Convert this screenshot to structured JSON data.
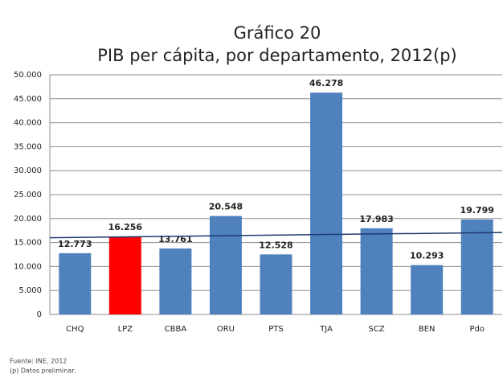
{
  "chart_data": {
    "type": "bar",
    "title": "Gráfico 20",
    "subtitle": "PIB per cápita, por departamento, 2012(p)",
    "categories": [
      "CHQ",
      "LPZ",
      "CBBA",
      "ORU",
      "PTS",
      "TJA",
      "SCZ",
      "BEN",
      "Pdo"
    ],
    "values": [
      12773,
      16256,
      13761,
      20548,
      12528,
      46278,
      17983,
      10293,
      19799
    ],
    "value_labels": [
      "12.773",
      "16.256",
      "13.761",
      "20.548",
      "12.528",
      "46.278",
      "17.983",
      "10.293",
      "19.799"
    ],
    "colors": [
      "#4f81bd",
      "#ff0000",
      "#4f81bd",
      "#4f81bd",
      "#4f81bd",
      "#4f81bd",
      "#4f81bd",
      "#4f81bd",
      "#4f81bd"
    ],
    "ylim": [
      0,
      50000
    ],
    "yticks": [
      0,
      {
        "value": 5000,
        "label": "5.000"
      },
      {
        "value": 10000,
        "label": "10.000"
      },
      {
        "value": 15000,
        "label": "15.000"
      },
      {
        "value": 20000,
        "label": "20.000"
      },
      {
        "value": 25000,
        "label": "25.000"
      },
      {
        "value": 30000,
        "label": "30.000"
      },
      {
        "value": 35000,
        "label": "35.000"
      },
      {
        "value": 40000,
        "label": "40.000"
      },
      {
        "value": 45000,
        "label": "45.000"
      },
      {
        "value": 50000,
        "label": "50.000"
      }
    ],
    "grid": true,
    "trend_line": {
      "values": [
        16000,
        17100
      ],
      "color": "#1f3a6e"
    },
    "notes": [
      "Fuente: INE, 2012",
      "(p) Datos preliminar."
    ]
  }
}
